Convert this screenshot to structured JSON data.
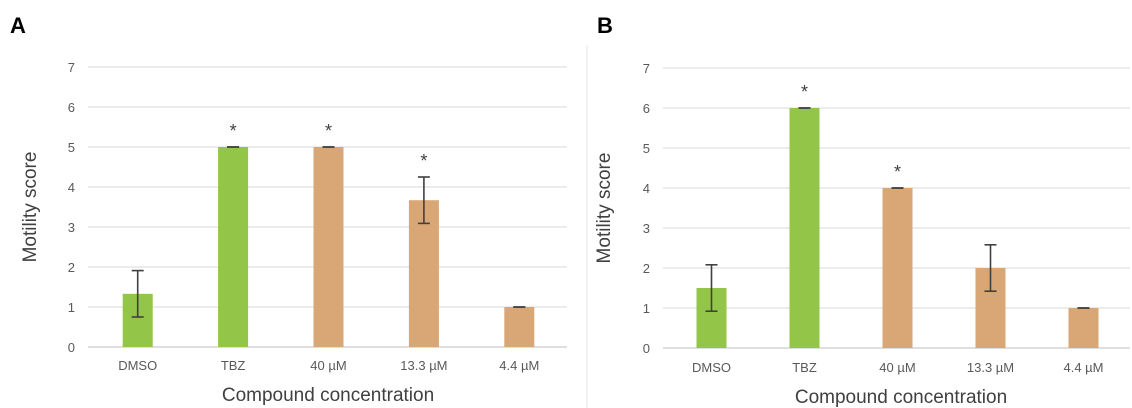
{
  "chart_data": [
    {
      "type": "bar",
      "panel_label": "A",
      "categories": [
        "DMSO",
        "TBZ",
        "40 µM",
        "13.3 µM",
        "4.4 µM"
      ],
      "values": [
        1.33,
        5.0,
        5.0,
        3.67,
        1.0
      ],
      "error_bars": [
        0.58,
        0.0,
        0.0,
        0.58,
        0.0
      ],
      "bar_colors": [
        "#92c548",
        "#92c548",
        "#d9a676",
        "#d9a676",
        "#d9a676"
      ],
      "annotations": [
        "",
        "*",
        "*",
        "*",
        ""
      ],
      "xlabel": "Compound concentration",
      "ylabel": "Motility score",
      "ylim": [
        0,
        7
      ],
      "yticks": [
        "0",
        "1",
        "2",
        "3",
        "4",
        "5",
        "6",
        "7"
      ],
      "grid": true
    },
    {
      "type": "bar",
      "panel_label": "B",
      "categories": [
        "DMSO",
        "TBZ",
        "40 µM",
        "13.3 µM",
        "4.4 µM"
      ],
      "values": [
        1.5,
        6.0,
        4.0,
        2.0,
        1.0
      ],
      "error_bars": [
        0.58,
        0.0,
        0.0,
        0.58,
        0.0
      ],
      "bar_colors": [
        "#92c548",
        "#92c548",
        "#d9a676",
        "#d9a676",
        "#d9a676"
      ],
      "annotations": [
        "",
        "*",
        "*",
        "",
        ""
      ],
      "xlabel": "Compound concentration",
      "ylabel": "Motility score",
      "ylim": [
        0,
        7
      ],
      "yticks": [
        "0",
        "1",
        "2",
        "3",
        "4",
        "5",
        "6",
        "7"
      ],
      "grid": true
    }
  ],
  "colors": {
    "control": "#92c548",
    "compound": "#d9a676",
    "gridline": "#d9d9d9",
    "error_bar": "#404040"
  }
}
